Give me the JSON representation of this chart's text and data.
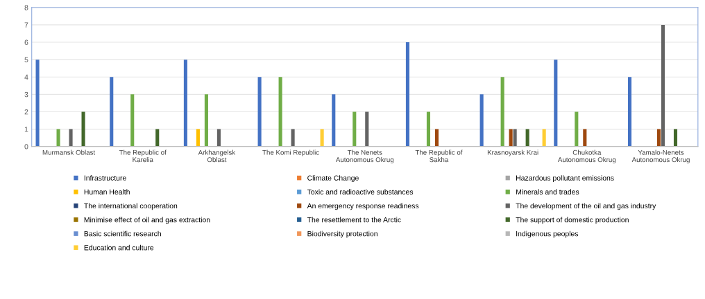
{
  "chart_data": {
    "type": "bar",
    "categories": [
      "Murmansk Oblast",
      "The Republic of Karelia",
      "Arkhangelsk Oblast",
      "The Komi Republic",
      "The Nenets Autonomous Okrug",
      "The Republic of Sakha",
      "Krasnoyarsk Krai",
      "Chukotka Autonomous Okrug",
      "Yamalo-Nenets Autonomous Okrug"
    ],
    "series": [
      {
        "name": "Infrastructure",
        "color": "#4472c4",
        "values": [
          5,
          4,
          5,
          4,
          3,
          6,
          3,
          5,
          4
        ]
      },
      {
        "name": "Climate Change",
        "color": "#ed7d31",
        "values": [
          0,
          0,
          0,
          0,
          0,
          0,
          0,
          0,
          0
        ]
      },
      {
        "name": "Hazardous pollutant emissions",
        "color": "#a5a5a5",
        "values": [
          0,
          0,
          0,
          0,
          0,
          0,
          0,
          0,
          0
        ]
      },
      {
        "name": "Human Health",
        "color": "#ffc000",
        "values": [
          0,
          0,
          1,
          0,
          0,
          0,
          0,
          0,
          0
        ]
      },
      {
        "name": "Toxic and radioactive substances",
        "color": "#5b9bd5",
        "values": [
          0,
          0,
          0,
          0,
          0,
          0,
          0,
          0,
          0
        ]
      },
      {
        "name": "Minerals and trades",
        "color": "#70ad47",
        "values": [
          1,
          3,
          3,
          4,
          2,
          2,
          4,
          2,
          0
        ]
      },
      {
        "name": "The international cooperation",
        "color": "#264478",
        "values": [
          0,
          0,
          0,
          0,
          0,
          0,
          0,
          0,
          0
        ]
      },
      {
        "name": "An emergency response readiness",
        "color": "#9e480e",
        "values": [
          0,
          0,
          0,
          0,
          0,
          1,
          1,
          1,
          1
        ]
      },
      {
        "name": "The development of the oil and gas industry",
        "color": "#636363",
        "values": [
          1,
          0,
          1,
          1,
          2,
          0,
          1,
          0,
          7
        ]
      },
      {
        "name": "Minimise effect of oil and gas extraction",
        "color": "#997300",
        "values": [
          0,
          0,
          0,
          0,
          0,
          0,
          0,
          0,
          0
        ]
      },
      {
        "name": "The resettlement to the Arctic",
        "color": "#255e91",
        "values": [
          0,
          0,
          0,
          0,
          0,
          0,
          0,
          0,
          0
        ]
      },
      {
        "name": "The support of domestic production",
        "color": "#43682b",
        "values": [
          2,
          1,
          0,
          0,
          0,
          0,
          1,
          0,
          1
        ]
      },
      {
        "name": "Basic scientific research",
        "color": "#698ed0",
        "values": [
          0,
          0,
          0,
          0,
          0,
          0,
          0,
          0,
          0
        ]
      },
      {
        "name": "Biodiversity protection",
        "color": "#f1975a",
        "values": [
          0,
          0,
          0,
          0,
          0,
          0,
          0,
          0,
          0
        ]
      },
      {
        "name": "Indigenous peoples",
        "color": "#b7b7b7",
        "values": [
          0,
          0,
          0,
          0,
          0,
          0,
          0,
          0,
          0
        ]
      },
      {
        "name": "Education and culture",
        "color": "#ffcd33",
        "values": [
          0,
          0,
          0,
          1,
          0,
          0,
          1,
          0,
          0
        ]
      }
    ],
    "ylim": [
      0,
      8
    ],
    "yticks": [
      0,
      1,
      2,
      3,
      4,
      5,
      6,
      7,
      8
    ],
    "grid": "y",
    "legend": "bottom"
  }
}
